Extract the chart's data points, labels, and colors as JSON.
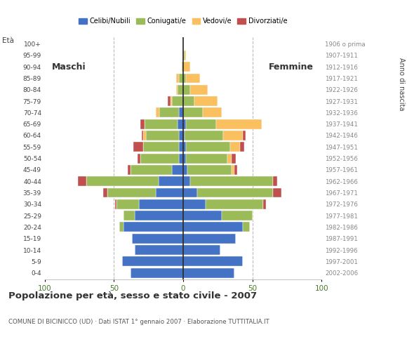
{
  "age_groups": [
    "0-4",
    "5-9",
    "10-14",
    "15-19",
    "20-24",
    "25-29",
    "30-34",
    "35-39",
    "40-44",
    "45-49",
    "50-54",
    "55-59",
    "60-64",
    "65-69",
    "70-74",
    "75-79",
    "80-84",
    "85-89",
    "90-94",
    "95-99",
    "100+"
  ],
  "birth_years": [
    "2002-2006",
    "1997-2001",
    "1992-1996",
    "1987-1991",
    "1982-1986",
    "1977-1981",
    "1972-1976",
    "1967-1971",
    "1962-1966",
    "1957-1961",
    "1952-1956",
    "1947-1951",
    "1942-1946",
    "1937-1941",
    "1932-1936",
    "1927-1931",
    "1922-1926",
    "1917-1921",
    "1912-1916",
    "1907-1911",
    "1906 o prima"
  ],
  "males": {
    "celibi": [
      38,
      44,
      35,
      37,
      43,
      35,
      32,
      20,
      18,
      8,
      3,
      3,
      3,
      4,
      3,
      0,
      0,
      0,
      0,
      0,
      0
    ],
    "coniugati": [
      0,
      0,
      0,
      0,
      3,
      8,
      16,
      35,
      52,
      30,
      28,
      26,
      24,
      24,
      14,
      8,
      4,
      3,
      1,
      0,
      0
    ],
    "vedovi": [
      0,
      0,
      0,
      0,
      0,
      0,
      0,
      0,
      0,
      0,
      0,
      0,
      2,
      0,
      3,
      1,
      1,
      2,
      0,
      0,
      0
    ],
    "divorziati": [
      0,
      0,
      0,
      0,
      0,
      0,
      1,
      3,
      6,
      2,
      2,
      7,
      1,
      3,
      0,
      2,
      0,
      0,
      0,
      0,
      0
    ]
  },
  "females": {
    "nubili": [
      37,
      43,
      27,
      38,
      43,
      28,
      16,
      10,
      5,
      3,
      2,
      2,
      1,
      2,
      0,
      0,
      0,
      0,
      0,
      0,
      0
    ],
    "coniugate": [
      0,
      0,
      0,
      0,
      5,
      22,
      42,
      55,
      60,
      32,
      30,
      32,
      28,
      22,
      14,
      8,
      5,
      2,
      0,
      1,
      0
    ],
    "vedove": [
      0,
      0,
      0,
      0,
      0,
      0,
      0,
      0,
      0,
      2,
      3,
      7,
      14,
      33,
      14,
      17,
      13,
      10,
      5,
      1,
      0
    ],
    "divorziate": [
      0,
      0,
      0,
      0,
      0,
      0,
      2,
      6,
      3,
      2,
      3,
      3,
      2,
      0,
      0,
      0,
      0,
      0,
      0,
      0,
      0
    ]
  },
  "colors": {
    "celibi": "#4472C4",
    "coniugati": "#9BBB59",
    "vedovi": "#FABF5F",
    "divorziati": "#C0504D"
  },
  "title": "Popolazione per età, sesso e stato civile - 2007",
  "subtitle": "COMUNE DI BICINICCO (UD) · Dati ISTAT 1° gennaio 2007 · Elaborazione TUTTITALIA.IT",
  "xlabel_left": "Maschi",
  "xlabel_right": "Femmine",
  "ylabel_left": "Età",
  "ylabel_right": "Anno di nascita",
  "xlim": 100,
  "background_color": "#ffffff",
  "grid_color": "#bbbbbb"
}
